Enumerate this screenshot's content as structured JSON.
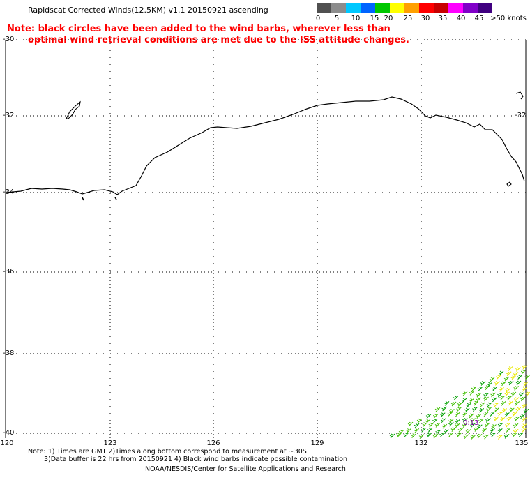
{
  "header": {
    "title": "Rapidscat Corrected Winds(12.5KM) v1.1 20150921 ascending"
  },
  "note": {
    "line1": "Note: black circles have been added to the wind barbs, wherever less than",
    "line2": "optimal wind retrieval conditions are met due to the ISS attitude changes."
  },
  "colorbar": {
    "labels": [
      "0",
      "5",
      "10",
      "15",
      "20",
      "25",
      "30",
      "35",
      "40",
      "45",
      ">50 knots"
    ],
    "colors": [
      "#505050",
      "#8c8c8c",
      "#00c8ff",
      "#0064ff",
      "#00c800",
      "#ffff00",
      "#ffa000",
      "#ff0000",
      "#c80000",
      "#ff00ff",
      "#8000c8",
      "#400080"
    ]
  },
  "axes": {
    "lat_labels": [
      "-30",
      "-32",
      "-34",
      "-36",
      "-38",
      "-40"
    ],
    "lon_labels": [
      "120",
      "123",
      "126",
      "129",
      "132",
      "135"
    ]
  },
  "timestamp": "0:13",
  "footer": {
    "line1": "Note: 1) Times are GMT 2)Times along bottom correspond to measurement at ~30S",
    "line2": "3)Data buffer is 22 hrs from 20150921 4) Black wind barbs indicate possible contamination",
    "line3": "NOAA/NESDIS/Center for Satellite Applications and Research"
  }
}
